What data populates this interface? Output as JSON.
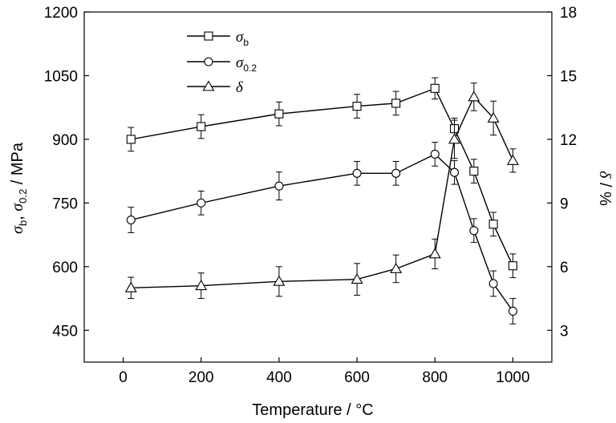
{
  "chart_data": {
    "type": "line",
    "x_title": "Temperature / °C",
    "x_ticks": [
      "0",
      "200",
      "400",
      "600",
      "800",
      "1000"
    ],
    "x_range": [
      -100,
      1100
    ],
    "left_axis": {
      "title_parts": [
        "σ",
        "b",
        ", ",
        "σ",
        "0.2",
        " / MPa"
      ],
      "ticks": [
        "450",
        "600",
        "750",
        "900",
        "1050",
        "1200"
      ],
      "range": [
        375,
        1200
      ]
    },
    "right_axis": {
      "title_parts": [
        "δ",
        " / %"
      ],
      "ticks": [
        "3",
        "6",
        "9",
        "12",
        "15",
        "18"
      ],
      "range": [
        1.5,
        18
      ]
    },
    "legend_position": "top-left",
    "series": [
      {
        "name": "σ",
        "name_sub": "b",
        "marker": "square",
        "axis": "left",
        "x": [
          20,
          200,
          400,
          600,
          700,
          800,
          850,
          900,
          950,
          1000
        ],
        "y": [
          900,
          930,
          960,
          978,
          985,
          1020,
          925,
          825,
          700,
          602
        ],
        "err": [
          28,
          28,
          28,
          28,
          28,
          25,
          25,
          28,
          28,
          28
        ]
      },
      {
        "name": "σ",
        "name_sub": "0.2",
        "marker": "circle",
        "axis": "left",
        "x": [
          20,
          200,
          400,
          600,
          700,
          800,
          850,
          900,
          950,
          1000
        ],
        "y": [
          710,
          750,
          790,
          820,
          820,
          865,
          822,
          685,
          560,
          495
        ],
        "err": [
          30,
          28,
          33,
          28,
          28,
          28,
          28,
          28,
          30,
          30
        ]
      },
      {
        "name": "δ",
        "name_sub": "",
        "marker": "triangle",
        "axis": "right",
        "x": [
          20,
          200,
          400,
          600,
          700,
          800,
          850,
          900,
          950,
          1000
        ],
        "y": [
          5.0,
          5.1,
          5.3,
          5.4,
          5.9,
          6.6,
          12.0,
          14.0,
          13.0,
          11.0
        ],
        "err": [
          0.5,
          0.6,
          0.7,
          0.75,
          0.65,
          0.7,
          0.9,
          0.65,
          0.8,
          0.55
        ]
      }
    ]
  }
}
